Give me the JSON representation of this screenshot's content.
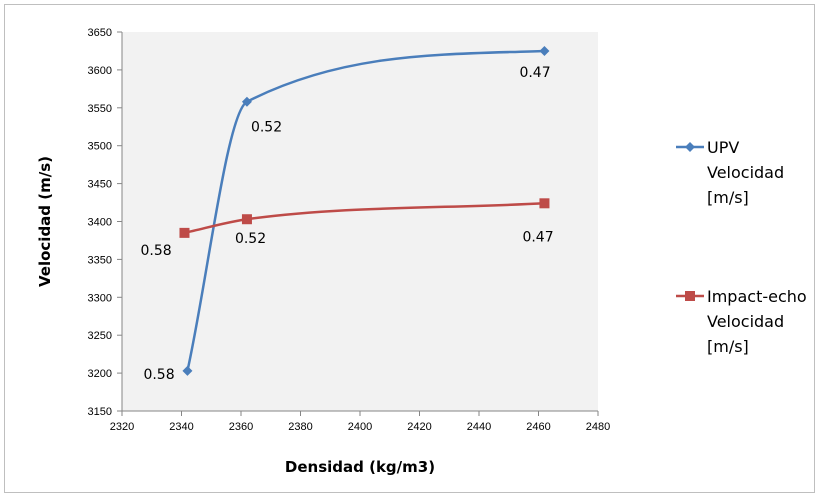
{
  "chart_data": {
    "type": "scatter",
    "title": "",
    "xlabel": "Densidad (kg/m3)",
    "ylabel": "Velocidad (m/s)",
    "xlim": [
      2320,
      2480
    ],
    "ylim": [
      3150,
      3650
    ],
    "x_ticks": [
      "2320",
      "2340",
      "2360",
      "2380",
      "2400",
      "2420",
      "2440",
      "2460",
      "2480"
    ],
    "y_ticks": [
      "3150",
      "3200",
      "3250",
      "3300",
      "3350",
      "3400",
      "3450",
      "3500",
      "3550",
      "3600",
      "3650"
    ],
    "grid": "none",
    "plot_area_color": "#f2f2f2",
    "legend_position": "right",
    "series": [
      {
        "name": [
          "UPV",
          "Velocidad",
          "[m/s]"
        ],
        "color": "#4a7ebb",
        "marker": "diamond",
        "smooth": true,
        "points": [
          {
            "x": 2342,
            "y": 3203,
            "label": "0.58"
          },
          {
            "x": 2362,
            "y": 3558,
            "label": "0.52"
          },
          {
            "x": 2462,
            "y": 3625,
            "label": "0.47"
          }
        ]
      },
      {
        "name": [
          "Impact-echo",
          "Velocidad",
          "[m/s]"
        ],
        "color": "#be4b48",
        "marker": "square",
        "smooth": true,
        "points": [
          {
            "x": 2341,
            "y": 3385,
            "label": "0.58"
          },
          {
            "x": 2362,
            "y": 3403,
            "label": "0.52"
          },
          {
            "x": 2462,
            "y": 3424,
            "label": "0.47"
          }
        ]
      }
    ]
  }
}
